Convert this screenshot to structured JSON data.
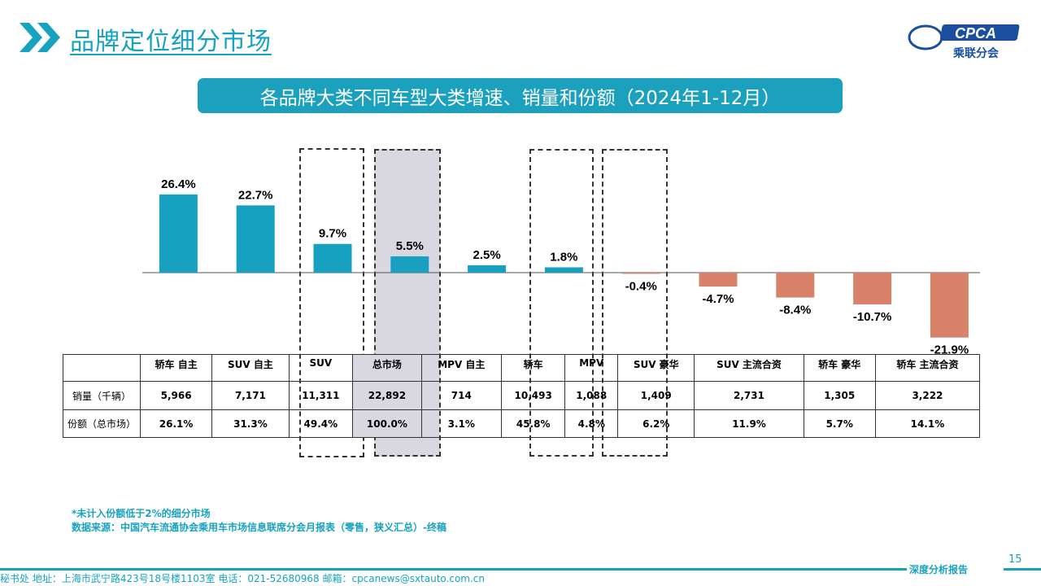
{
  "header": {
    "title": "品牌定位细分市场",
    "logo_text": "CPCA",
    "logo_sub": "乘联分会"
  },
  "colors": {
    "accent": "#17a2c0",
    "positive": "#18a0c0",
    "negative": "#d9826a",
    "highlight": "#d9d8e0"
  },
  "chart_data": {
    "type": "bar",
    "title": "各品牌大类不同车型大类增速、销量和份额（2024年1-12月）",
    "categories": [
      "轿车 自主",
      "SUV 自主",
      "SUV",
      "总市场",
      "MPV 自主",
      "轿车",
      "MPV",
      "SUV 豪华",
      "SUV 主流合资",
      "轿车 豪华",
      "轿车 主流合资"
    ],
    "values": [
      26.4,
      22.7,
      9.7,
      5.5,
      2.5,
      1.8,
      -0.4,
      -4.7,
      -8.4,
      -10.7,
      -21.9
    ],
    "labels": [
      "26.4%",
      "22.7%",
      "9.7%",
      "5.5%",
      "2.5%",
      "1.8%",
      "-0.4%",
      "-4.7%",
      "-8.4%",
      "-10.7%",
      "-21.9%"
    ],
    "highlighted": [
      "SUV",
      "总市场",
      "轿车",
      "MPV"
    ]
  },
  "table": {
    "rows": [
      {
        "label": "销量（千辆）",
        "values": [
          "5,966",
          "7,171",
          "11,311",
          "22,892",
          "714",
          "10,493",
          "1,088",
          "1,409",
          "2,731",
          "1,305",
          "3,222"
        ]
      },
      {
        "label": "份额（总市场）",
        "values": [
          "26.1%",
          "31.3%",
          "49.4%",
          "100.0%",
          "3.1%",
          "45.8%",
          "4.8%",
          "6.2%",
          "11.9%",
          "5.7%",
          "14.1%"
        ]
      }
    ]
  },
  "notes": [
    "*未计入份额低于2%的细分市场",
    "数据来源：中国汽车流通协会乘用车市场信息联席分会月报表（零售，狭义汇总）-终稿"
  ],
  "footer": {
    "address": "秘书处  地址：上海市武宁路423号18号楼1103室  电话：021-52680968  邮箱：cpcanews@sxtauto.com.cn",
    "report": "深度分析报告",
    "page": "15"
  }
}
